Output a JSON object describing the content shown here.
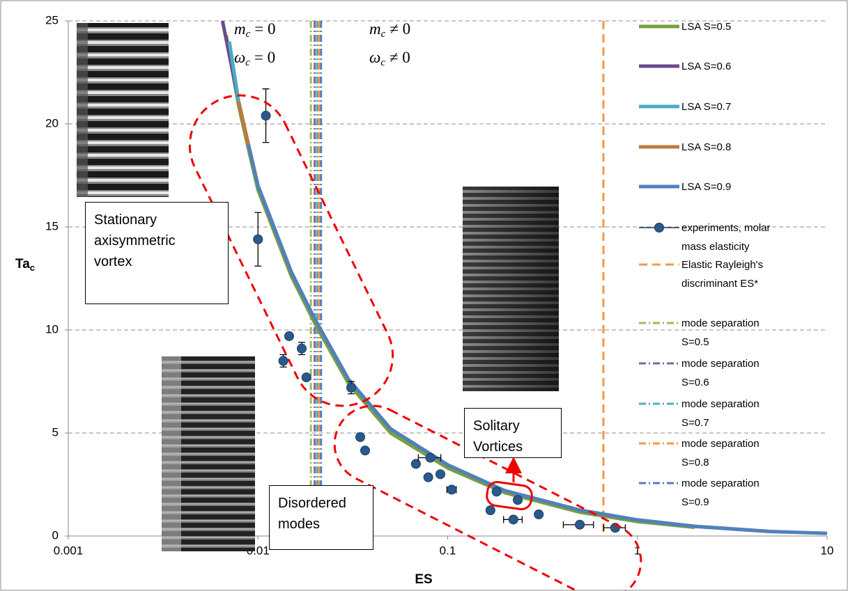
{
  "chart_data": {
    "type": "scatter",
    "xlabel": "ES",
    "ylabel": "Ta",
    "ylabel_subscript": "c",
    "xscale": "log",
    "xlim": [
      0.001,
      10
    ],
    "ylim": [
      0,
      25
    ],
    "xticks": [
      0.001,
      0.01,
      0.1,
      1,
      10
    ],
    "yticks": [
      0,
      5,
      10,
      15,
      20,
      25
    ],
    "grid": true,
    "legend": "right",
    "series": [
      {
        "name": "LSA S=0.5",
        "type": "line",
        "color": "#77a03c",
        "x": [
          0.0068,
          0.0079,
          0.0089,
          0.01,
          0.015,
          0.02,
          0.03,
          0.05,
          0.1,
          0.2,
          0.5,
          1,
          2
        ],
        "values": [
          24.3,
          20.9,
          18.8,
          16.8,
          12.6,
          10.3,
          7.4,
          5.0,
          3.3,
          2.1,
          1.15,
          0.7,
          0.42
        ]
      },
      {
        "name": "LSA S=0.6",
        "type": "line",
        "color": "#6a4a8c",
        "x": [
          0.0065,
          0.0079,
          0.0089,
          0.01,
          0.015,
          0.02,
          0.03,
          0.05,
          0.1,
          0.2,
          0.5,
          1,
          2,
          3
        ],
        "values": [
          25,
          21.1,
          19.0,
          17.0,
          12.8,
          10.5,
          7.6,
          5.2,
          3.45,
          2.2,
          1.25,
          0.78,
          0.47,
          0.36
        ]
      },
      {
        "name": "LSA S=0.7",
        "type": "line",
        "color": "#4bacc6",
        "x": [
          0.00706,
          0.0079,
          0.0089,
          0.01,
          0.015,
          0.02,
          0.03,
          0.05,
          0.1,
          0.2,
          0.5,
          1,
          2,
          4
        ],
        "values": [
          24,
          21.1,
          19.0,
          17.0,
          12.8,
          10.5,
          7.6,
          5.2,
          3.45,
          2.2,
          1.25,
          0.78,
          0.47,
          0.28
        ]
      },
      {
        "name": "LSA S=0.8",
        "type": "line",
        "color": "#c0793a",
        "x": [
          0.0079,
          0.0089,
          0.01,
          0.015,
          0.02,
          0.03,
          0.05,
          0.1,
          0.2,
          0.5,
          1,
          2,
          5
        ],
        "values": [
          21.1,
          19.0,
          17.0,
          12.8,
          10.5,
          7.6,
          5.2,
          3.45,
          2.2,
          1.25,
          0.78,
          0.47,
          0.22
        ]
      },
      {
        "name": "LSA S=0.9",
        "type": "line",
        "color": "#4f81bd",
        "x": [
          0.0089,
          0.01,
          0.015,
          0.02,
          0.03,
          0.05,
          0.1,
          0.2,
          0.5,
          1,
          2,
          5,
          10
        ],
        "values": [
          19.0,
          17.0,
          12.8,
          10.5,
          7.6,
          5.2,
          3.45,
          2.2,
          1.25,
          0.78,
          0.47,
          0.22,
          0.13
        ]
      },
      {
        "name": "experiments, molar mass elasticity",
        "type": "scatter",
        "color": "#2a5a8c",
        "x": [
          0.011,
          0.01,
          0.0146,
          0.0136,
          0.017,
          0.018,
          0.031,
          0.0346,
          0.0367,
          0.068,
          0.081,
          0.079,
          0.0915,
          0.105,
          0.168,
          0.181,
          0.222,
          0.234,
          0.302,
          0.497,
          0.764
        ],
        "values": [
          20.4,
          14.4,
          9.7,
          8.5,
          9.1,
          7.7,
          7.2,
          4.8,
          4.15,
          3.5,
          3.8,
          2.85,
          3.0,
          2.25,
          1.25,
          2.15,
          0.8,
          1.75,
          1.05,
          0.55,
          0.4
        ],
        "y_err": [
          1.3,
          1.3,
          null,
          0.3,
          0.3,
          null,
          0.3,
          null,
          null,
          null,
          null,
          null,
          null,
          null,
          null,
          null,
          null,
          null,
          null,
          null,
          null
        ],
        "x_err": [
          null,
          null,
          null,
          null,
          null,
          null,
          null,
          null,
          null,
          null,
          0.011,
          null,
          null,
          0.006,
          null,
          null,
          0.025,
          null,
          null,
          0.09,
          0.1
        ]
      },
      {
        "name": "Elastic Rayleigh's discriminant ES*",
        "type": "vline",
        "style": "dash",
        "color": "#f79646",
        "x": 0.662
      },
      {
        "name": "mode separation S=0.5",
        "type": "vline",
        "style": "dashdot",
        "color": "#9bbb59",
        "x": 0.019
      },
      {
        "name": "mode separation S=0.6",
        "type": "vline",
        "style": "dashdot",
        "color": "#8064a2",
        "x": 0.0199
      },
      {
        "name": "mode separation S=0.7",
        "type": "vline",
        "style": "dashdot",
        "color": "#4bacc6",
        "x": 0.0205
      },
      {
        "name": "mode separation S=0.8",
        "type": "vline",
        "style": "dashdot",
        "color": "#f79646",
        "x": 0.021
      },
      {
        "name": "mode separation S=0.9",
        "type": "vline",
        "style": "dashdot",
        "color": "#4f81bd",
        "x": 0.0215
      }
    ],
    "annotations": [
      "Stationary axisymmetric vortex",
      "Disordered modes",
      "Solitary Vortices"
    ],
    "math_labels": [
      {
        "base": "m",
        "sub": "c",
        "rest": "= 0"
      },
      {
        "base": "ω",
        "sub": "c",
        "rest": "= 0"
      },
      {
        "base": "m",
        "sub": "c",
        "rest": "≠ 0"
      },
      {
        "base": "ω",
        "sub": "c",
        "rest": "≠ 0"
      }
    ]
  }
}
